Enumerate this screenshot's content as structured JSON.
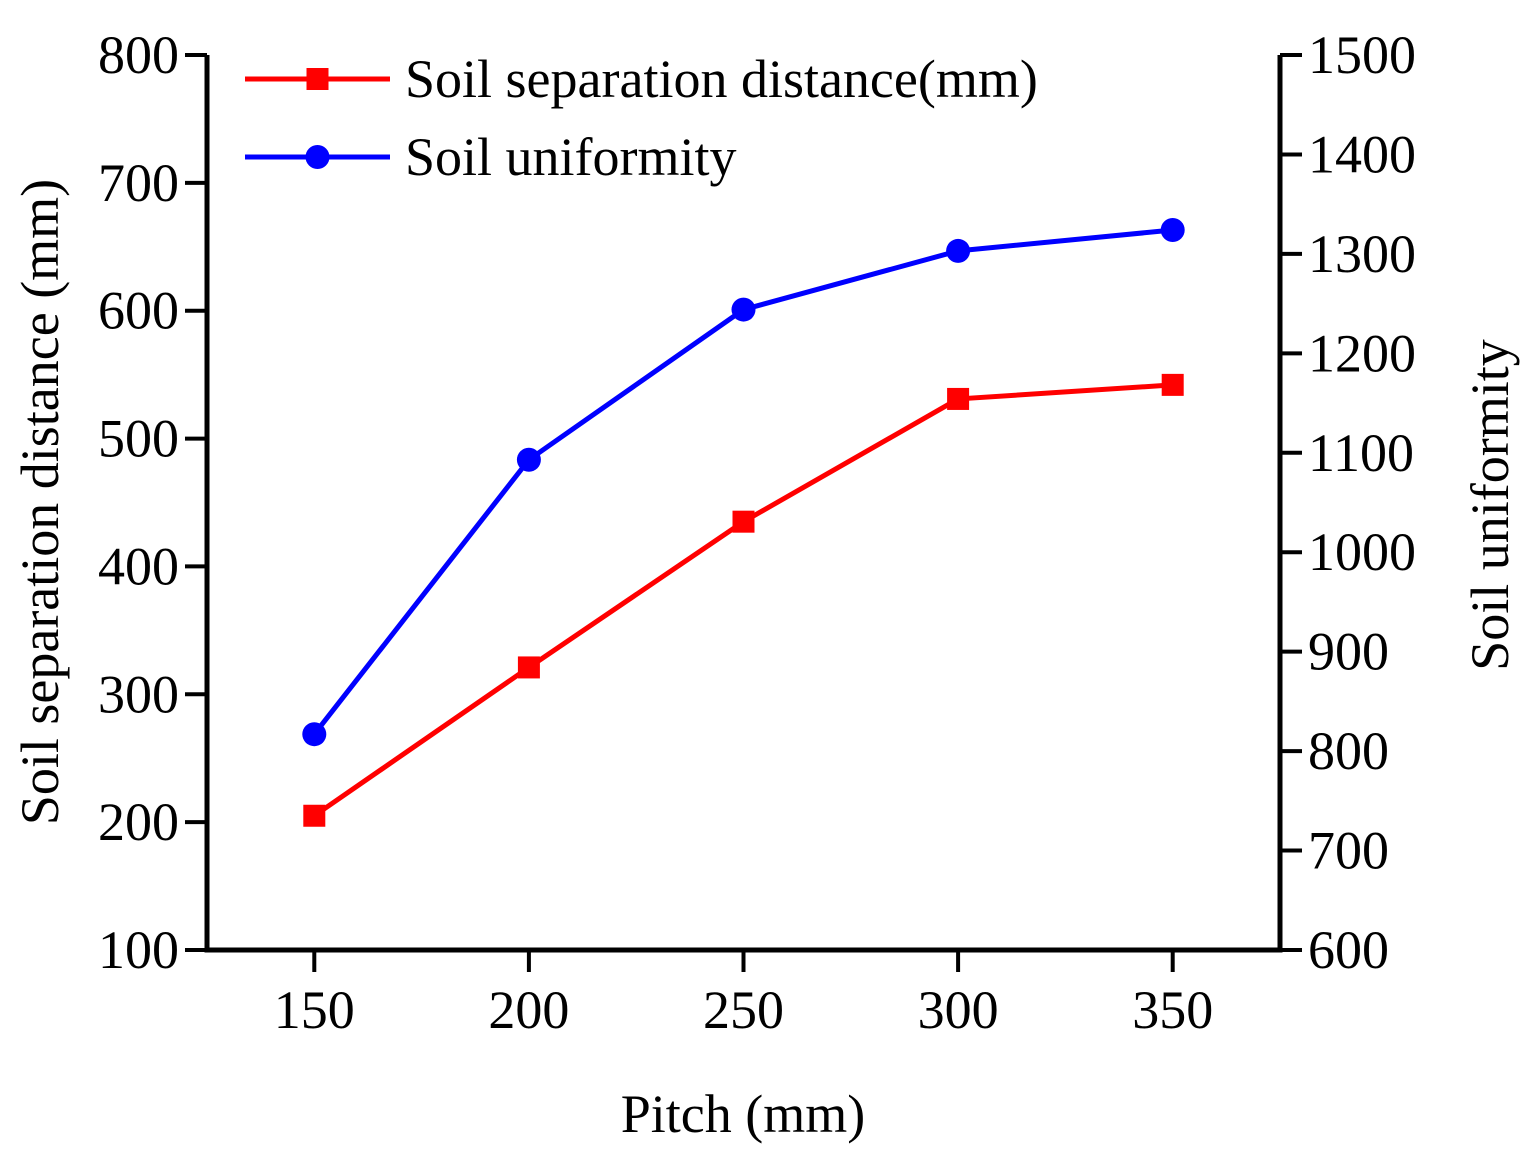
{
  "chart_data": {
    "type": "line",
    "title": "",
    "xlabel": "Pitch (mm)",
    "ylabel": "Soil separation distance (mm)",
    "ylabel_right": "Soil uniformity",
    "x": [
      150,
      200,
      250,
      300,
      350
    ],
    "xlim": [
      125,
      375
    ],
    "xticks": [
      150,
      200,
      250,
      300,
      350
    ],
    "ylim": [
      100,
      800
    ],
    "yticks": [
      100,
      200,
      300,
      400,
      500,
      600,
      700,
      800
    ],
    "ylim_right": [
      600,
      1500
    ],
    "yticks_right": [
      600,
      700,
      800,
      900,
      1000,
      1100,
      1200,
      1300,
      1400,
      1500
    ],
    "grid": false,
    "legend_position": "top-left",
    "series": [
      {
        "name": "Soil separation distance(mm)",
        "axis": "left",
        "color": "#ff0000",
        "marker": "square",
        "values": [
          205,
          321,
          435,
          531,
          542
        ]
      },
      {
        "name": "Soil uniformity",
        "axis": "right",
        "color": "#0000ff",
        "marker": "circle",
        "values": [
          817,
          1093,
          1244,
          1303,
          1324
        ]
      }
    ]
  }
}
